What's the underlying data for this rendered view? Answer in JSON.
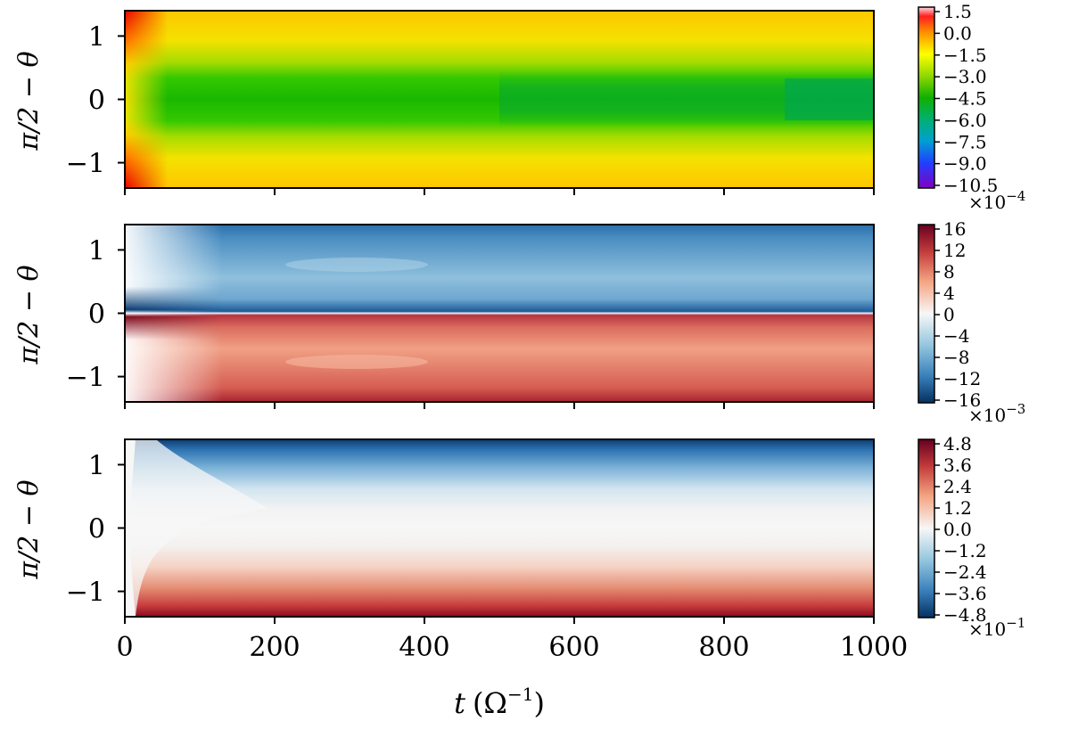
{
  "chart_data": [
    {
      "type": "heatmap",
      "ylabel": "π/2 − θ",
      "xlim": [
        0,
        1000
      ],
      "ylim": [
        -1.4,
        1.4
      ],
      "yticks": [
        "1",
        "0",
        "−1"
      ],
      "ytick_values": [
        1,
        0,
        -1
      ],
      "colormap": "gist_ncar-like (purple-blue-cyan-green-yellow-orange-red)",
      "colorbar": {
        "ticks": [
          "1.5",
          "0.0",
          "−1.5",
          "−3.0",
          "−4.5",
          "−6.0",
          "−7.5",
          "−9.0",
          "−10.5"
        ],
        "range": [
          -10.5,
          1.5
        ],
        "multiplier": "×10",
        "exponent": "−4"
      },
      "field_summary": {
        "equator_min_t_0_500": -4.5,
        "equator_min_t_500_1000": -5.2,
        "high_latitude_t_lt_40": 0.8,
        "high_latitude_late": -1.2
      }
    },
    {
      "type": "heatmap",
      "ylabel": "π/2 − θ",
      "xlim": [
        0,
        1000
      ],
      "ylim": [
        -1.4,
        1.4
      ],
      "yticks": [
        "1",
        "0",
        "−1"
      ],
      "ytick_values": [
        1,
        0,
        -1
      ],
      "colormap": "RdBu_r",
      "colorbar": {
        "ticks": [
          "16",
          "12",
          "8",
          "4",
          "0",
          "−4",
          "−8",
          "−12",
          "−16"
        ],
        "range": [
          -18,
          18
        ],
        "multiplier": "×10",
        "exponent": "−3"
      },
      "field_summary": {
        "north_hemisphere_sign": "negative",
        "south_hemisphere_sign": "positive",
        "peak_near_equator_early": 18
      }
    },
    {
      "type": "heatmap",
      "ylabel": "π/2 − θ",
      "xlabel_var": "t",
      "xlabel_unit": "(Ω",
      "xlabel_unit_exp": "−1",
      "xlabel_close": ")",
      "xlim": [
        0,
        1000
      ],
      "ylim": [
        -1.4,
        1.4
      ],
      "xticks": [
        "0",
        "200",
        "400",
        "600",
        "800",
        "1000"
      ],
      "xtick_values": [
        0,
        200,
        400,
        600,
        800,
        1000
      ],
      "yticks": [
        "1",
        "0",
        "−1"
      ],
      "ytick_values": [
        1,
        0,
        -1
      ],
      "colormap": "RdBu_r",
      "colorbar": {
        "ticks": [
          "4.8",
          "3.6",
          "2.4",
          "1.2",
          "0.0",
          "−1.2",
          "−2.4",
          "−3.6",
          "−4.8"
        ],
        "range": [
          -4.8,
          4.8
        ],
        "multiplier": "×10",
        "exponent": "−1"
      },
      "field_summary": {
        "top_edge_value": -4.8,
        "bottom_edge_value": 4.8,
        "equator_value": 0
      }
    }
  ]
}
